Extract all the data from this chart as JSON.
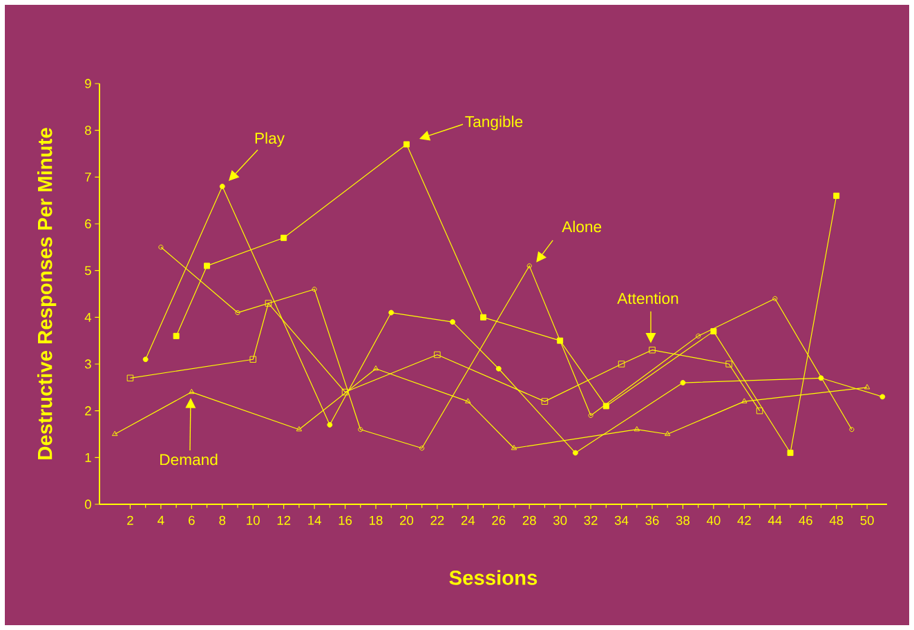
{
  "chart_data": {
    "type": "line",
    "xlabel": "Sessions",
    "ylabel": "Destructive Responses Per Minute",
    "xlim": [
      0,
      51.3
    ],
    "ylim": [
      0,
      9
    ],
    "xticks": [
      2,
      4,
      6,
      8,
      10,
      12,
      14,
      16,
      18,
      20,
      22,
      24,
      26,
      28,
      30,
      32,
      34,
      36,
      38,
      40,
      42,
      44,
      46,
      48,
      50
    ],
    "yticks": [
      0,
      1,
      2,
      3,
      4,
      5,
      6,
      7,
      8,
      9
    ],
    "grid": false,
    "line_style": "solid",
    "annotations": [
      "Demand",
      {
        "text": "Attention",
        "x": 36,
        "y": 3.3
      },
      "Play",
      {
        "text": "Alone",
        "x": 28,
        "y": 5.1
      },
      "Tangible"
    ],
    "series": [
      {
        "color": "#ffff00",
        "marker": "triangle",
        "x": [
          1,
          6,
          13,
          18,
          24,
          27,
          35,
          37,
          42,
          50
        ],
        "values": [
          1.5,
          2.4,
          1.6,
          2.9,
          2.2,
          1.2,
          1.6,
          1.5,
          2.2,
          2.5
        ]
      },
      {
        "color": "#ffff00",
        "marker": "square",
        "x": [
          2,
          10,
          11,
          16,
          22,
          29,
          34,
          36,
          41,
          43
        ],
        "values": [
          2.7,
          3.1,
          4.3,
          2.4,
          3.2,
          2.2,
          3.0,
          3.3,
          3.0,
          2.0
        ]
      },
      {
        "color": "#ffff00",
        "marker": "circle",
        "x": [
          3,
          8,
          15,
          19,
          23,
          26,
          31,
          38,
          47,
          51
        ],
        "values": [
          3.1,
          6.8,
          1.7,
          4.1,
          3.9,
          2.9,
          1.1,
          2.6,
          2.7,
          2.3
        ]
      },
      {
        "color": "#ffff00",
        "marker": "circle",
        "x": [
          4,
          9,
          14,
          17,
          21,
          28,
          32,
          39,
          44,
          49
        ],
        "values": [
          5.5,
          4.1,
          4.6,
          1.6,
          1.2,
          5.1,
          1.9,
          3.6,
          4.4,
          1.6
        ]
      },
      {
        "color": "#ffff00",
        "marker": "square",
        "x": [
          5,
          7,
          12,
          20,
          25,
          30,
          33,
          40,
          45,
          48
        ],
        "values": [
          3.6,
          5.1,
          5.7,
          7.7,
          4.0,
          3.5,
          2.1,
          3.7,
          1.1,
          6.6
        ]
      }
    ]
  }
}
